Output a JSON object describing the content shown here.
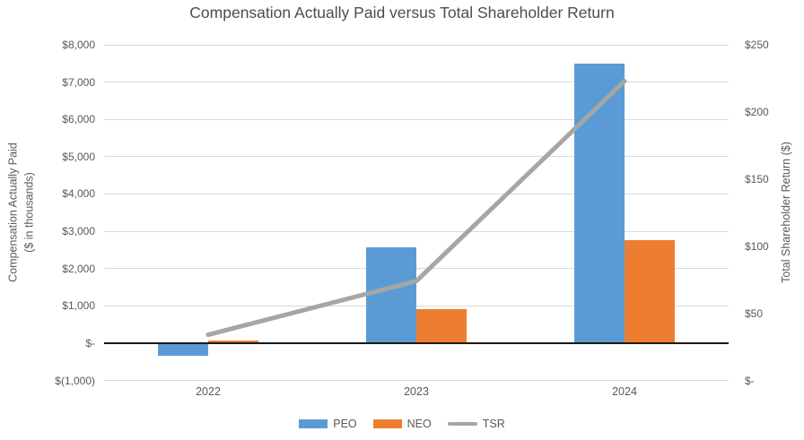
{
  "chart_data": {
    "type": "combo-bar-line",
    "title": "Compensation Actually Paid versus Total Shareholder Return",
    "categories": [
      "2022",
      "2023",
      "2024"
    ],
    "series": [
      {
        "name": "PEO",
        "type": "bar",
        "axis": "left",
        "color": "#5B9BD5",
        "values": [
          -350,
          2580,
          7500
        ]
      },
      {
        "name": "NEO",
        "type": "bar",
        "axis": "left",
        "color": "#ED7D31",
        "values": [
          60,
          920,
          2770
        ]
      },
      {
        "name": "TSR",
        "type": "line",
        "axis": "right",
        "color": "#A6A6A6",
        "values": [
          34,
          74,
          223
        ]
      }
    ],
    "left_axis": {
      "title_line1": "Compensation Actually Paid",
      "title_line2": "($ in thousands)",
      "min": -1000,
      "max": 8000,
      "step": 1000,
      "tick_labels": [
        "$8,000",
        "$7,000",
        "$6,000",
        "$5,000",
        "$4,000",
        "$3,000",
        "$2,000",
        "$1,000",
        "$-",
        "$(1,000)"
      ]
    },
    "right_axis": {
      "title": "Total Shareholder Return ($)",
      "min": 0,
      "max": 250,
      "step": 50,
      "tick_labels": [
        "$250",
        "$200",
        "$150",
        "$100",
        "$50",
        "$-"
      ]
    },
    "legend_position": "bottom",
    "grid": true,
    "colors": {
      "gridline": "#d9d9d9",
      "axis_line": "#1a1a1a",
      "text": "#595959"
    }
  }
}
